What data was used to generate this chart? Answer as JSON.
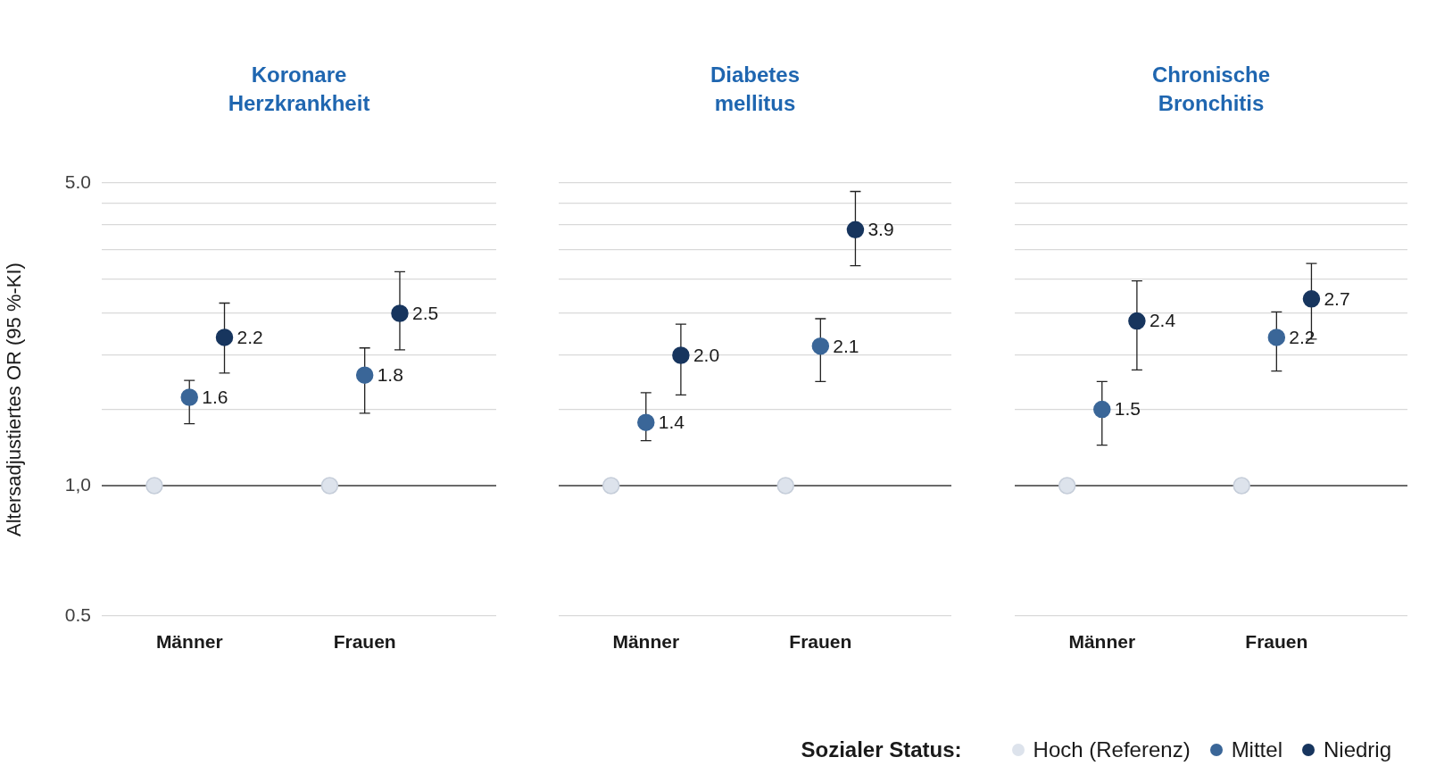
{
  "chart_data": [
    {
      "type": "scatter",
      "title": "Koronare Herzkrankheit",
      "ylabel": "Altersadjustiertes OR (95 %-KI)",
      "categories": [
        "Männer",
        "Frauen"
      ],
      "log": "y",
      "grid": "y",
      "marker": "circle",
      "legend": "bottom right",
      "legend_title": "Sozialer Status:",
      "ylim": [
        0.5,
        5
      ],
      "yticks": [
        {
          "value": 0.5,
          "label": "0.5"
        },
        {
          "value": 1,
          "label": "1,0"
        },
        {
          "value": 1.5,
          "label": null
        },
        {
          "value": 2,
          "label": null
        },
        {
          "value": 2.5,
          "label": null
        },
        {
          "value": 3,
          "label": null
        },
        {
          "value": 3.5,
          "label": null
        },
        {
          "value": 4,
          "label": null
        },
        {
          "value": 4.5,
          "label": null
        },
        {
          "value": 5,
          "label": "5.0"
        }
      ],
      "ref_lines": [
        {
          "axis": "y",
          "value": 1,
          "color": "#404040"
        }
      ],
      "series": [
        {
          "name": "Hoch (Referenz)",
          "color": "#dde3ec",
          "values": [
            1,
            1
          ],
          "value_labels": [
            null,
            null
          ]
        },
        {
          "name": "Mittel",
          "color": "#3a6698",
          "values": [
            1.6,
            1.8
          ],
          "value_labels": [
            "1.6",
            "1.8"
          ],
          "errors": [
            [
              1.39,
              1.75
            ],
            [
              1.47,
              2.08
            ]
          ]
        },
        {
          "name": "Niedrig",
          "color": "#17355e",
          "values": [
            2.2,
            2.5
          ],
          "value_labels": [
            "2.2",
            "2.5"
          ],
          "errors": [
            [
              1.82,
              2.64
            ],
            [
              2.06,
              3.12
            ]
          ]
        }
      ]
    },
    {
      "type": "scatter",
      "title": "Diabetes mellitus",
      "categories": [
        "Männer",
        "Frauen"
      ],
      "log": "y",
      "grid": "y",
      "marker": "circle",
      "tick_labels": "x",
      "ylim": [
        0.5,
        5
      ],
      "yticks": [
        {
          "value": 0.5,
          "label": null
        },
        {
          "value": 1,
          "label": null
        },
        {
          "value": 1.5,
          "label": null
        },
        {
          "value": 2,
          "label": null
        },
        {
          "value": 2.5,
          "label": null
        },
        {
          "value": 3,
          "label": null
        },
        {
          "value": 3.5,
          "label": null
        },
        {
          "value": 4,
          "label": null
        },
        {
          "value": 4.5,
          "label": null
        },
        {
          "value": 5,
          "label": null
        }
      ],
      "ref_lines": [
        {
          "axis": "y",
          "value": 1,
          "color": "#404040"
        }
      ],
      "series": [
        {
          "color": "#dde3ec",
          "values": [
            1,
            1
          ],
          "value_labels": [
            null,
            null
          ]
        },
        {
          "color": "#3a6698",
          "values": [
            1.4,
            2.1
          ],
          "value_labels": [
            "1.4",
            "2.1"
          ],
          "errors": [
            [
              1.27,
              1.64
            ],
            [
              1.74,
              2.43
            ]
          ]
        },
        {
          "color": "#17355e",
          "values": [
            2.0,
            3.9
          ],
          "value_labels": [
            "2.0",
            "3.9"
          ],
          "errors": [
            [
              1.62,
              2.36
            ],
            [
              3.22,
              4.78
            ]
          ]
        }
      ]
    },
    {
      "type": "scatter",
      "title": "Chronische Bronchitis",
      "categories": [
        "Männer",
        "Frauen"
      ],
      "log": "y",
      "grid": "y",
      "marker": "circle",
      "tick_labels": "x",
      "ylim": [
        0.5,
        5
      ],
      "yticks": [
        {
          "value": 0.5,
          "label": null
        },
        {
          "value": 1,
          "label": null
        },
        {
          "value": 1.5,
          "label": null
        },
        {
          "value": 2,
          "label": null
        },
        {
          "value": 2.5,
          "label": null
        },
        {
          "value": 3,
          "label": null
        },
        {
          "value": 3.5,
          "label": null
        },
        {
          "value": 4,
          "label": null
        },
        {
          "value": 4.5,
          "label": null
        },
        {
          "value": 5,
          "label": null
        }
      ],
      "ref_lines": [
        {
          "axis": "y",
          "value": 1,
          "color": "#404040"
        }
      ],
      "series": [
        {
          "color": "#dde3ec",
          "values": [
            1,
            1
          ],
          "value_labels": [
            null,
            null
          ]
        },
        {
          "color": "#3a6698",
          "values": [
            1.5,
            2.2
          ],
          "value_labels": [
            "1.5",
            "2.2"
          ],
          "errors": [
            [
              1.24,
              1.74
            ],
            [
              1.84,
              2.52
            ]
          ]
        },
        {
          "color": "#17355e",
          "values": [
            2.4,
            2.7
          ],
          "value_labels": [
            "2.4",
            "2.7"
          ],
          "errors": [
            [
              1.85,
              2.97
            ],
            [
              2.18,
              3.26
            ]
          ]
        }
      ]
    }
  ]
}
